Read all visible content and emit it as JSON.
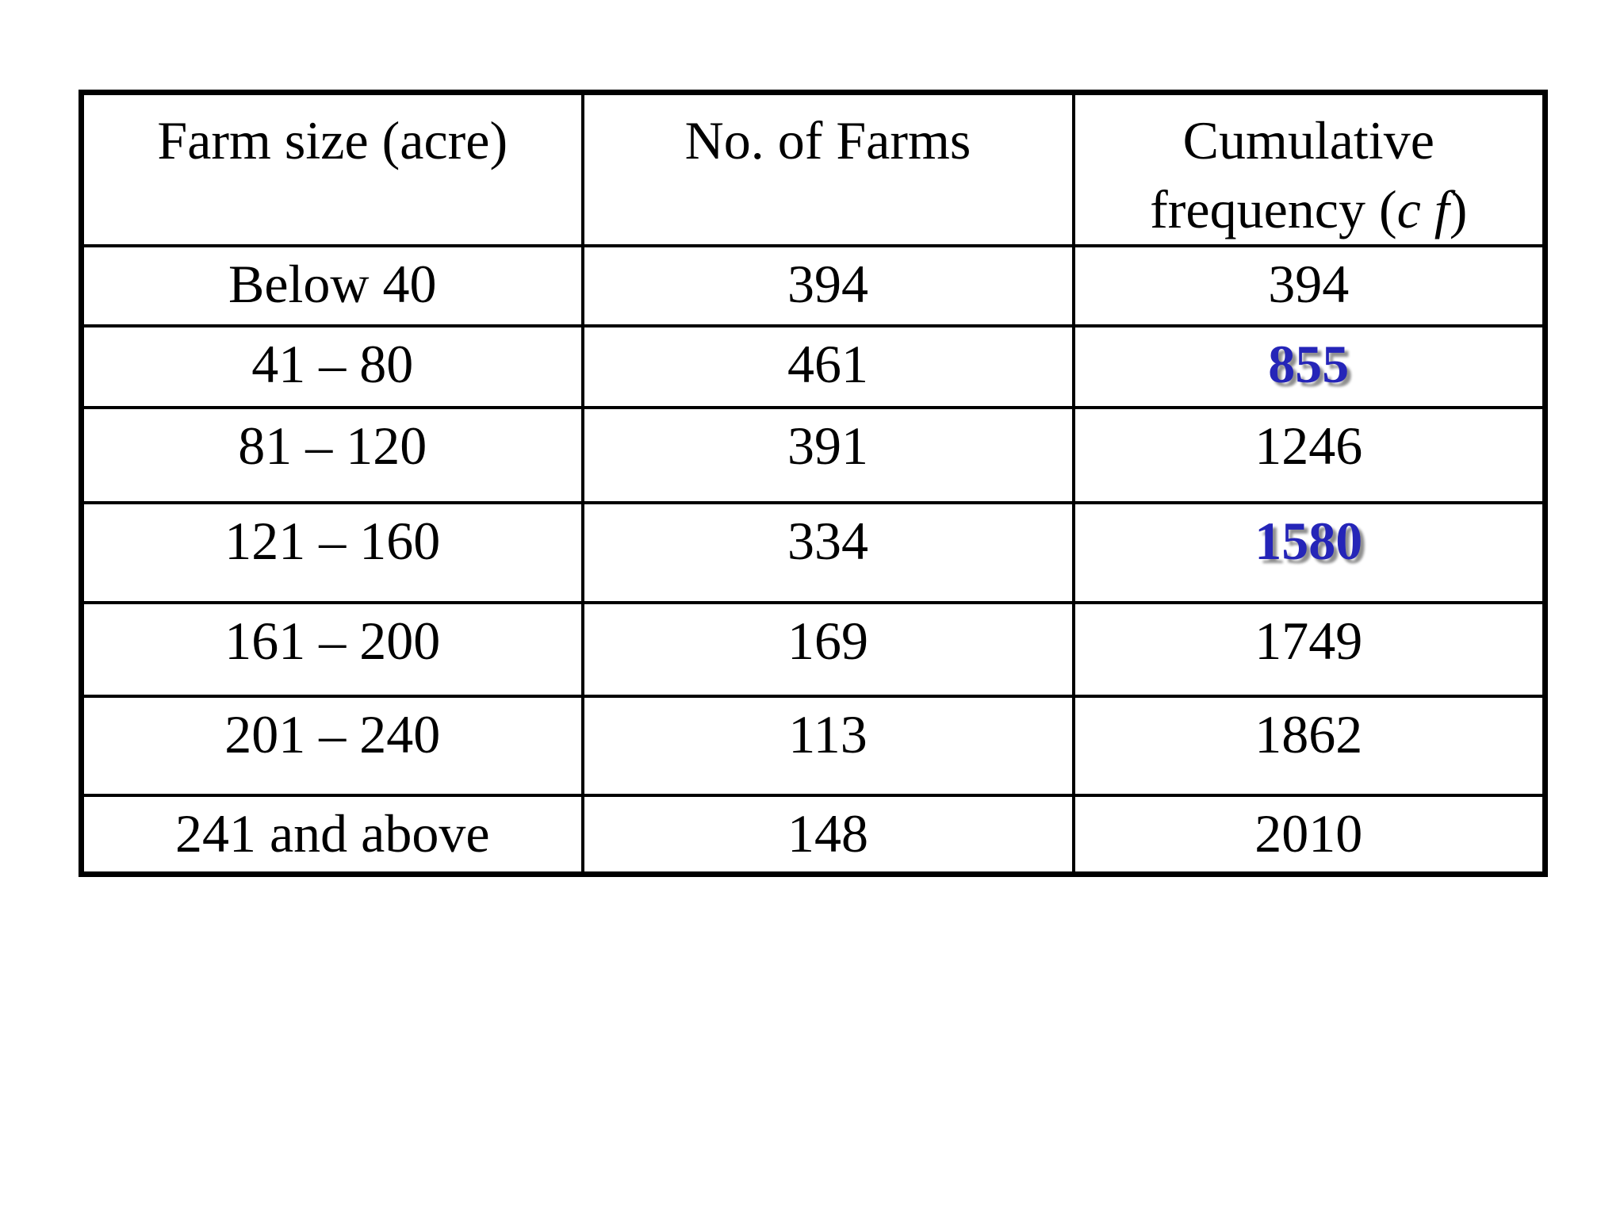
{
  "slide": {
    "table": {
      "header": {
        "farm_size": "Farm size (acre)",
        "no_of_farms": "No. of Farms",
        "cumulative_line1": "Cumulative",
        "cumulative_line2_prefix": "frequency (",
        "cumulative_abbrev": "c f",
        "cumulative_line2_suffix": ")"
      },
      "rows": [
        {
          "farm_size": "Below 40",
          "no_of_farms": "394",
          "cf": "394"
        },
        {
          "farm_size": "41 – 80",
          "no_of_farms": "461",
          "cf": "855"
        },
        {
          "farm_size": "81 – 120",
          "no_of_farms": "391",
          "cf": "1246"
        },
        {
          "farm_size": "121 – 160",
          "no_of_farms": "334",
          "cf": "1580"
        },
        {
          "farm_size": "161 – 200",
          "no_of_farms": "169",
          "cf": "1749"
        },
        {
          "farm_size": "201 – 240",
          "no_of_farms": "113",
          "cf": "1862"
        },
        {
          "farm_size": "241 and above",
          "no_of_farms": "148",
          "cf": "2010"
        }
      ],
      "highlighted_cf_values": [
        "855",
        "1580"
      ]
    },
    "colors": {
      "background": "#ffffff",
      "text": "#000000",
      "border": "#000000",
      "highlight_blue": "#2525b8",
      "highlight_shadow": "#8f8f8f"
    }
  }
}
